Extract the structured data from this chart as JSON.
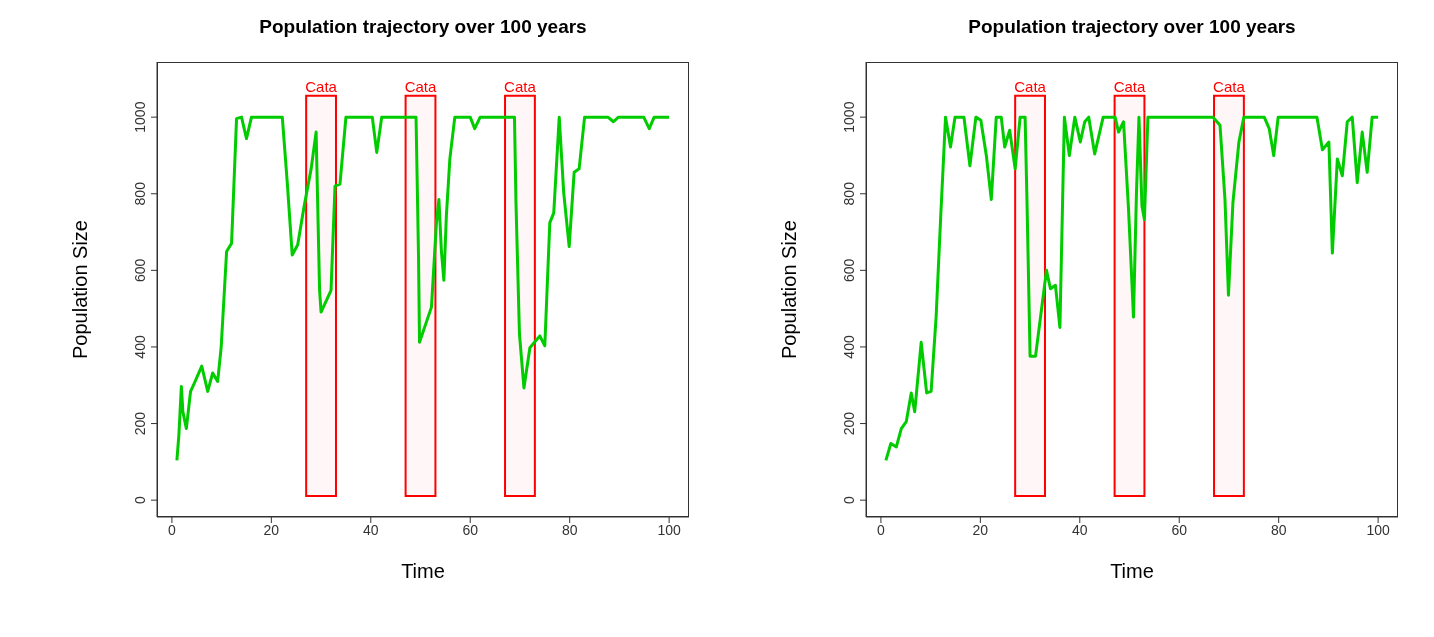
{
  "chart_data": [
    {
      "type": "line",
      "title": "Population trajectory over 100 years",
      "xlabel": "Time",
      "ylabel": "Population Size",
      "xlim": [
        -3,
        104
      ],
      "xticks": [
        0,
        20,
        40,
        60,
        80,
        100
      ],
      "ylim": [
        -44,
        1144
      ],
      "yticks": [
        0,
        200,
        400,
        600,
        800,
        1000
      ],
      "x": [
        1,
        1.4,
        1.9,
        2.2,
        2.9,
        3.75,
        4.4,
        6,
        7.2,
        8.2,
        9.2,
        9.9,
        11,
        12,
        13,
        14,
        15,
        16,
        22.2,
        23.2,
        24.2,
        25.3,
        26.6,
        28,
        29,
        29.7,
        30,
        32,
        32.8,
        33.8,
        35,
        40.3,
        41.2,
        42.2,
        49.1,
        49.6,
        49.8,
        52.2,
        53.2,
        53.7,
        54.2,
        54.7,
        55.2,
        55.9,
        56.9,
        60,
        60.9,
        62,
        68.9,
        69.2,
        69.9,
        70.8,
        72,
        74,
        75,
        76,
        76.8,
        77.9,
        78.8,
        79.9,
        80.9,
        81.9,
        83,
        87.7,
        88.8,
        89.8,
        94.9,
        96,
        97,
        100
      ],
      "series": [
        {
          "color": "#00cc00",
          "values": [
            104,
            170,
            297,
            231,
            187,
            284,
            302,
            350,
            284,
            332,
            310,
            398,
            649,
            671,
            996,
            1000,
            944,
            1000,
            1000,
            829,
            640,
            667,
            768,
            865,
            961,
            548,
            491,
            548,
            820,
            825,
            1000,
            1000,
            908,
            1000,
            1000,
            636,
            412,
            504,
            724,
            785,
            650,
            574,
            742,
            891,
            1000,
            1000,
            970,
            1000,
            1000,
            777,
            434,
            293,
            398,
            429,
            403,
            724,
            750,
            1000,
            803,
            662,
            856,
            865,
            1000,
            1000,
            988,
            1000,
            1000,
            970,
            1000,
            1000
          ]
        }
      ],
      "bands": [
        {
          "axis": "x",
          "from": 27,
          "to": 33,
          "label": "Cata",
          "color": "#ff0000"
        },
        {
          "axis": "x",
          "from": 47,
          "to": 53,
          "label": "Cata",
          "color": "#ff0000"
        },
        {
          "axis": "x",
          "from": 67,
          "to": 73,
          "label": "Cata",
          "color": "#ff0000"
        }
      ]
    },
    {
      "type": "line",
      "title": "Population trajectory over 100 years",
      "xlabel": "Time",
      "ylabel": "Population Size",
      "xlim": [
        -3,
        104
      ],
      "xticks": [
        0,
        20,
        40,
        60,
        80,
        100
      ],
      "ylim": [
        -44,
        1144
      ],
      "yticks": [
        0,
        200,
        400,
        600,
        800,
        1000
      ],
      "x": [
        1,
        2,
        3.1,
        4.1,
        5.1,
        6.1,
        6.8,
        8.1,
        9.2,
        10.1,
        11.1,
        12,
        13,
        14,
        14.9,
        16.7,
        17.9,
        19.1,
        20.1,
        21.2,
        22.2,
        23.2,
        24.2,
        24.9,
        25.9,
        27,
        28,
        29,
        29.4,
        30,
        31.1,
        32.1,
        33.3,
        34.1,
        35.1,
        36,
        36.9,
        37.9,
        39,
        40.1,
        41,
        41.8,
        43,
        44.7,
        47.1,
        47.8,
        48.8,
        49.8,
        50.8,
        51.4,
        51.9,
        52.5,
        53,
        53.7,
        66.8,
        68.2,
        69.2,
        69.9,
        70.8,
        72,
        73,
        77.1,
        78.1,
        79,
        79.9,
        87.7,
        88.8,
        90.1,
        90.8,
        91.8,
        92.8,
        93.8,
        94.8,
        95.8,
        96.8,
        97.8,
        98.8,
        100
      ],
      "series": [
        {
          "color": "#00cc00",
          "values": [
            104,
            148,
            139,
            187,
            205,
            280,
            231,
            412,
            280,
            284,
            478,
            733,
            1000,
            922,
            1000,
            1000,
            873,
            1000,
            992,
            900,
            785,
            1000,
            1000,
            922,
            966,
            865,
            1000,
            1000,
            768,
            376,
            376,
            478,
            600,
            552,
            561,
            451,
            1000,
            900,
            1000,
            935,
            988,
            1000,
            904,
            1000,
            1000,
            961,
            988,
            760,
            478,
            803,
            1000,
            768,
            733,
            1000,
            1000,
            979,
            785,
            535,
            777,
            935,
            1000,
            1000,
            970,
            900,
            1000,
            1000,
            915,
            935,
            645,
            891,
            847,
            988,
            1000,
            829,
            961,
            856,
            1000,
            1000
          ]
        }
      ],
      "bands": [
        {
          "axis": "x",
          "from": 27,
          "to": 33,
          "label": "Cata",
          "color": "#ff0000"
        },
        {
          "axis": "x",
          "from": 47,
          "to": 53,
          "label": "Cata",
          "color": "#ff0000"
        },
        {
          "axis": "x",
          "from": 67,
          "to": 73,
          "label": "Cata",
          "color": "#ff0000"
        }
      ]
    }
  ]
}
